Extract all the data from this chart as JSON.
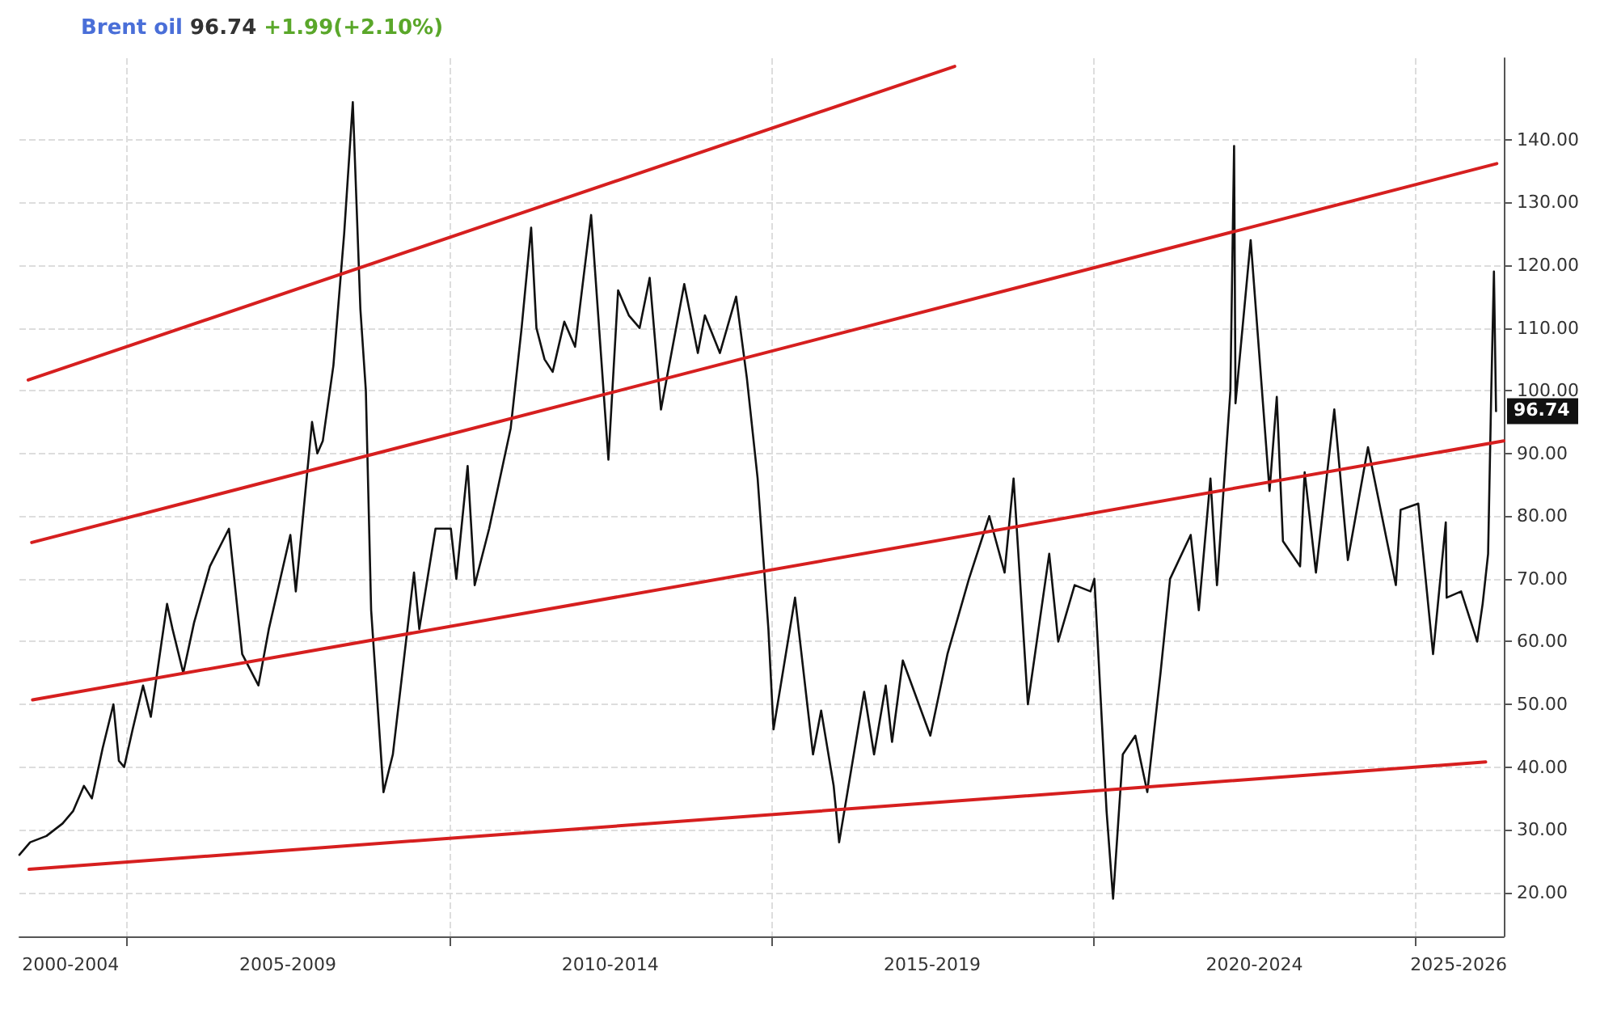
{
  "chart_data": {
    "type": "line",
    "title": "Brent oil",
    "annotations": [
      "96.74",
      "+1.99(+2.10%)",
      {
        "text": "96.74",
        "x": "2026-04-01",
        "y": 96.74
      }
    ],
    "xlim": [
      "2003-05-01",
      "2026-05-15"
    ],
    "xticks": [
      {
        "value": "2004-02-15",
        "label": "2000-2004"
      },
      {
        "value": "2005-01-01",
        "label": null
      },
      {
        "value": "2007-07-01",
        "label": "2005-2009"
      },
      {
        "value": "2010-01-01",
        "label": null
      },
      {
        "value": "2012-07-01",
        "label": "2010-2014"
      },
      {
        "value": "2015-01-01",
        "label": null
      },
      {
        "value": "2017-07-01",
        "label": "2015-2019"
      },
      {
        "value": "2020-01-01",
        "label": null
      },
      {
        "value": "2022-07-01",
        "label": "2020-2024"
      },
      {
        "value": "2025-01-01",
        "label": null
      },
      {
        "value": "2025-09-01",
        "label": "2025-2026"
      }
    ],
    "ylim": [
      13,
      153
    ],
    "yticks": [
      {
        "value": 20,
        "label": "20.00"
      },
      {
        "value": 30,
        "label": "30.00"
      },
      {
        "value": 40,
        "label": "40.00"
      },
      {
        "value": 50,
        "label": "50.00"
      },
      {
        "value": 60,
        "label": "60.00"
      },
      {
        "value": 70,
        "label": "70.00"
      },
      {
        "value": 80,
        "label": "80.00"
      },
      {
        "value": 90,
        "label": "90.00"
      },
      {
        "value": 100,
        "label": "100.00"
      },
      {
        "value": 110,
        "label": "110.00"
      },
      {
        "value": 120,
        "label": "120.00"
      },
      {
        "value": 130,
        "label": "130.00"
      },
      {
        "value": 140,
        "label": "140.00"
      }
    ],
    "grid": true,
    "marker": "none",
    "series": [
      {
        "color": "#111111",
        "x": [
          "2003-05-01",
          "2003-07-01",
          "2003-10-01",
          "2004-01-01",
          "2004-03-01",
          "2004-05-01",
          "2004-06-15",
          "2004-08-15",
          "2004-10-15",
          "2004-11-15",
          "2004-12-15",
          "2005-02-01",
          "2005-04-01",
          "2005-05-15",
          "2005-08-15",
          "2005-09-15",
          "2005-11-15",
          "2006-01-15",
          "2006-04-15",
          "2006-08-01",
          "2006-10-15",
          "2007-01-15",
          "2007-03-15",
          "2007-07-15",
          "2007-08-15",
          "2007-11-15",
          "2007-12-15",
          "2008-01-15",
          "2008-03-15",
          "2008-05-15",
          "2008-07-03",
          "2008-08-15",
          "2008-09-15",
          "2008-10-15",
          "2008-12-24",
          "2009-02-15",
          "2009-06-15",
          "2009-07-15",
          "2009-10-15",
          "2010-01-10",
          "2010-02-10",
          "2010-04-15",
          "2010-05-25",
          "2010-08-15",
          "2010-12-15",
          "2011-02-15",
          "2011-04-10",
          "2011-05-10",
          "2011-06-25",
          "2011-08-10",
          "2011-10-15",
          "2011-12-15",
          "2012-03-15",
          "2012-06-21",
          "2012-08-15",
          "2012-10-15",
          "2012-12-15",
          "2013-02-10",
          "2013-04-15",
          "2013-08-25",
          "2013-11-10",
          "2013-12-20",
          "2014-03-15",
          "2014-06-15",
          "2014-08-15",
          "2014-10-15",
          "2014-12-15",
          "2015-01-13",
          "2015-05-15",
          "2015-08-25",
          "2015-10-10",
          "2015-12-20",
          "2016-01-20",
          "2016-06-10",
          "2016-08-05",
          "2016-10-10",
          "2016-11-15",
          "2017-01-15",
          "2017-06-20",
          "2017-09-25",
          "2018-01-25",
          "2018-05-20",
          "2018-08-15",
          "2018-10-05",
          "2018-12-25",
          "2019-04-25",
          "2019-06-15",
          "2019-09-16",
          "2019-12-15",
          "2020-01-06",
          "2020-03-15",
          "2020-04-21",
          "2020-06-15",
          "2020-08-25",
          "2020-11-01",
          "2021-01-15",
          "2021-03-10",
          "2021-07-05",
          "2021-08-20",
          "2021-10-25",
          "2021-12-01",
          "2022-02-15",
          "2022-03-08",
          "2022-03-16",
          "2022-06-10",
          "2022-09-25",
          "2022-11-05",
          "2022-12-10",
          "2023-03-17",
          "2023-04-12",
          "2023-06-15",
          "2023-09-27",
          "2023-12-13",
          "2024-04-05",
          "2024-09-10",
          "2024-10-07",
          "2025-01-15",
          "2025-04-09",
          "2025-06-20",
          "2025-06-25",
          "2025-09-15",
          "2025-12-15",
          "2026-01-15",
          "2026-02-15",
          "2026-03-05",
          "2026-03-20",
          "2026-04-01"
        ],
        "values": [
          26,
          28,
          29,
          31,
          33,
          37,
          35,
          43,
          50,
          41,
          40,
          46,
          53,
          48,
          66,
          62,
          55,
          63,
          72,
          78,
          58,
          53,
          62,
          77,
          68,
          95,
          90,
          92,
          104,
          125,
          146,
          113,
          100,
          65,
          36,
          42,
          71,
          62,
          78,
          78,
          70,
          88,
          69,
          78,
          94,
          110,
          126,
          110,
          105,
          103,
          111,
          107,
          128,
          89,
          116,
          112,
          110,
          118,
          97,
          117,
          106,
          112,
          106,
          115,
          102,
          86,
          62,
          46,
          67,
          42,
          49,
          37,
          28,
          52,
          42,
          53,
          44,
          57,
          45,
          58,
          70,
          80,
          71,
          86,
          50,
          74,
          60,
          69,
          68,
          70,
          33,
          19,
          42,
          45,
          36,
          55,
          70,
          77,
          65,
          86,
          69,
          100,
          139,
          98,
          124,
          84,
          99,
          76,
          72,
          87,
          71,
          97,
          73,
          91,
          69,
          81,
          82,
          58,
          79,
          67,
          68,
          60,
          66,
          74,
          100,
          119,
          96.74
        ]
      },
      {
        "color": "#d61f1f",
        "x": [
          "2003-06-20",
          "2017-11-05"
        ],
        "values": [
          101.7,
          151.7
        ]
      },
      {
        "color": "#d61f1f",
        "x": [
          "2003-07-10",
          "2026-04-05"
        ],
        "values": [
          75.8,
          136.2
        ]
      },
      {
        "color": "#d61f1f",
        "x": [
          "2003-07-15",
          "2026-05-15"
        ],
        "values": [
          50.7,
          92
        ]
      },
      {
        "color": "#d61f1f",
        "x": [
          "2003-06-25",
          "2026-02-01"
        ],
        "values": [
          23.7,
          40.8
        ]
      }
    ]
  }
}
